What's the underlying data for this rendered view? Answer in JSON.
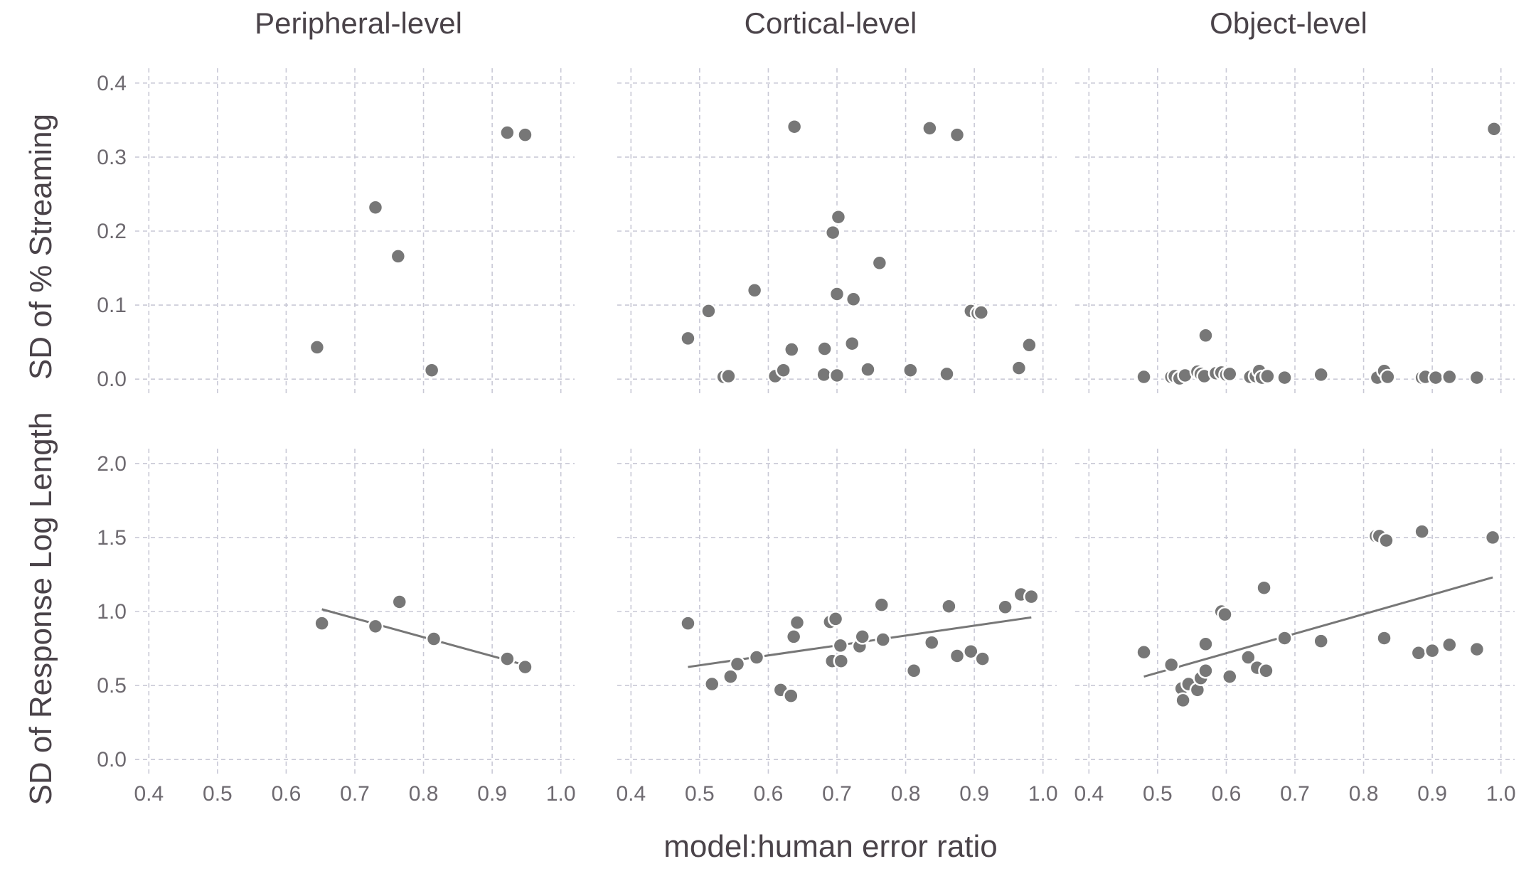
{
  "chart_data": {
    "type": "scatter",
    "xlabel": "model:human error ratio",
    "x_ticks": [
      0.4,
      0.5,
      0.6,
      0.7,
      0.8,
      0.9,
      1.0
    ],
    "xlim": [
      0.38,
      1.02
    ],
    "grid": true,
    "columns": [
      "Peripheral-level",
      "Cortical-level",
      "Object-level"
    ],
    "rows": [
      {
        "ylabel": "SD of % Streaming",
        "ylim": [
          -0.02,
          0.42
        ],
        "y_ticks": [
          0.0,
          0.1,
          0.2,
          0.3,
          0.4
        ],
        "panels": [
          {
            "points": [
              [
                0.645,
                0.043
              ],
              [
                0.73,
                0.232
              ],
              [
                0.763,
                0.166
              ],
              [
                0.812,
                0.012
              ],
              [
                0.922,
                0.333
              ],
              [
                0.948,
                0.33
              ]
            ]
          },
          {
            "points": [
              [
                0.483,
                0.055
              ],
              [
                0.513,
                0.092
              ],
              [
                0.535,
                0.003
              ],
              [
                0.542,
                0.004
              ],
              [
                0.58,
                0.12
              ],
              [
                0.61,
                0.004
              ],
              [
                0.622,
                0.012
              ],
              [
                0.634,
                0.04
              ],
              [
                0.638,
                0.341
              ],
              [
                0.681,
                0.006
              ],
              [
                0.682,
                0.041
              ],
              [
                0.694,
                0.198
              ],
              [
                0.7,
                0.005
              ],
              [
                0.7,
                0.115
              ],
              [
                0.702,
                0.219
              ],
              [
                0.722,
                0.048
              ],
              [
                0.724,
                0.108
              ],
              [
                0.745,
                0.013
              ],
              [
                0.762,
                0.157
              ],
              [
                0.807,
                0.012
              ],
              [
                0.835,
                0.339
              ],
              [
                0.86,
                0.007
              ],
              [
                0.875,
                0.33
              ],
              [
                0.895,
                0.092
              ],
              [
                0.905,
                0.089
              ],
              [
                0.91,
                0.09
              ],
              [
                0.965,
                0.015
              ],
              [
                0.98,
                0.046
              ]
            ]
          },
          {
            "points": [
              [
                0.48,
                0.003
              ],
              [
                0.52,
                0.003
              ],
              [
                0.525,
                0.004
              ],
              [
                0.532,
                0.001
              ],
              [
                0.54,
                0.005
              ],
              [
                0.558,
                0.01
              ],
              [
                0.563,
                0.007
              ],
              [
                0.568,
                0.004
              ],
              [
                0.57,
                0.059
              ],
              [
                0.585,
                0.008
              ],
              [
                0.593,
                0.009
              ],
              [
                0.6,
                0.006
              ],
              [
                0.605,
                0.007
              ],
              [
                0.635,
                0.003
              ],
              [
                0.643,
                0.004
              ],
              [
                0.648,
                0.011
              ],
              [
                0.652,
                0.002
              ],
              [
                0.66,
                0.004
              ],
              [
                0.685,
                0.002
              ],
              [
                0.738,
                0.006
              ],
              [
                0.82,
                0.002
              ],
              [
                0.83,
                0.011
              ],
              [
                0.835,
                0.003
              ],
              [
                0.885,
                0.002
              ],
              [
                0.89,
                0.003
              ],
              [
                0.905,
                0.002
              ],
              [
                0.925,
                0.003
              ],
              [
                0.965,
                0.002
              ],
              [
                0.99,
                0.338
              ]
            ]
          }
        ]
      },
      {
        "ylabel": "SD of Response Log Length",
        "ylim": [
          -0.1,
          2.1
        ],
        "y_ticks": [
          0.0,
          0.5,
          1.0,
          1.5,
          2.0
        ],
        "panels": [
          {
            "points": [
              [
                0.652,
                0.92
              ],
              [
                0.73,
                0.9
              ],
              [
                0.765,
                1.065
              ],
              [
                0.815,
                0.815
              ],
              [
                0.922,
                0.68
              ],
              [
                0.948,
                0.625
              ]
            ],
            "fit": [
              [
                0.652,
                1.015
              ],
              [
                0.95,
                0.635
              ]
            ]
          },
          {
            "points": [
              [
                0.483,
                0.92
              ],
              [
                0.518,
                0.51
              ],
              [
                0.545,
                0.56
              ],
              [
                0.555,
                0.645
              ],
              [
                0.583,
                0.69
              ],
              [
                0.618,
                0.47
              ],
              [
                0.633,
                0.43
              ],
              [
                0.637,
                0.83
              ],
              [
                0.642,
                0.925
              ],
              [
                0.69,
                0.93
              ],
              [
                0.693,
                0.665
              ],
              [
                0.698,
                0.95
              ],
              [
                0.705,
                0.77
              ],
              [
                0.706,
                0.665
              ],
              [
                0.733,
                0.765
              ],
              [
                0.737,
                0.83
              ],
              [
                0.765,
                1.045
              ],
              [
                0.767,
                0.81
              ],
              [
                0.812,
                0.6
              ],
              [
                0.838,
                0.79
              ],
              [
                0.863,
                1.035
              ],
              [
                0.875,
                0.7
              ],
              [
                0.895,
                0.73
              ],
              [
                0.912,
                0.68
              ],
              [
                0.945,
                1.03
              ],
              [
                0.968,
                1.115
              ],
              [
                0.983,
                1.1
              ]
            ],
            "fit": [
              [
                0.483,
                0.625
              ],
              [
                0.983,
                0.96
              ]
            ]
          },
          {
            "points": [
              [
                0.48,
                0.725
              ],
              [
                0.52,
                0.64
              ],
              [
                0.535,
                0.48
              ],
              [
                0.537,
                0.4
              ],
              [
                0.545,
                0.51
              ],
              [
                0.558,
                0.47
              ],
              [
                0.563,
                0.55
              ],
              [
                0.57,
                0.78
              ],
              [
                0.57,
                0.6
              ],
              [
                0.593,
                1.0
              ],
              [
                0.598,
                0.98
              ],
              [
                0.605,
                0.56
              ],
              [
                0.632,
                0.69
              ],
              [
                0.645,
                0.62
              ],
              [
                0.655,
                1.16
              ],
              [
                0.658,
                0.6
              ],
              [
                0.685,
                0.82
              ],
              [
                0.738,
                0.8
              ],
              [
                0.818,
                1.51
              ],
              [
                0.823,
                1.51
              ],
              [
                0.83,
                0.82
              ],
              [
                0.833,
                1.48
              ],
              [
                0.88,
                0.72
              ],
              [
                0.885,
                1.54
              ],
              [
                0.9,
                0.735
              ],
              [
                0.925,
                0.775
              ],
              [
                0.965,
                0.745
              ],
              [
                0.988,
                1.5
              ]
            ],
            "fit": [
              [
                0.48,
                0.56
              ],
              [
                0.988,
                1.23
              ]
            ]
          }
        ]
      }
    ]
  }
}
